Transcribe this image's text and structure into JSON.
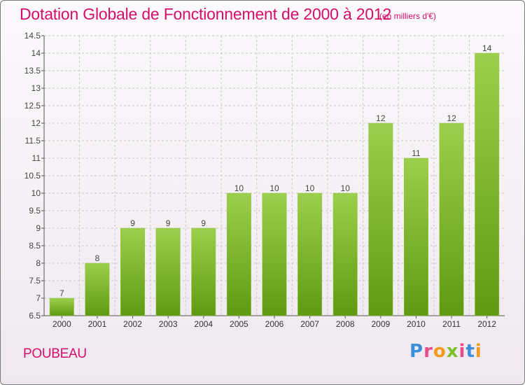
{
  "title": "Dotation Globale de Fonctionnement de 2000 à 2012",
  "subtitle": "(en milliers d'€)",
  "commune": "POUBEAU",
  "logo": {
    "text": "Proxiti",
    "letters": [
      {
        "ch": "P",
        "color": "#3a8fd8"
      },
      {
        "ch": "r",
        "color": "#e84b8a"
      },
      {
        "ch": "o",
        "color": "#f39a1e"
      },
      {
        "ch": "x",
        "color": "#7bbf2a"
      },
      {
        "ch": "i",
        "color": "#e84b8a"
      },
      {
        "ch": "t",
        "color": "#3a8fd8"
      },
      {
        "ch": "i",
        "color": "#f39a1e"
      }
    ]
  },
  "colors": {
    "accent": "#d40e6a",
    "bar_top": "#9ccf4c",
    "bar_bottom": "#5f9a12",
    "grid": "#c8c8c8"
  },
  "chart_data": {
    "type": "bar",
    "title": "Dotation Globale de Fonctionnement de 2000 à 2012",
    "subtitle": "(en milliers d'€)",
    "categories": [
      "2000",
      "2001",
      "2002",
      "2003",
      "2004",
      "2005",
      "2006",
      "2007",
      "2008",
      "2009",
      "2010",
      "2011",
      "2012"
    ],
    "values": [
      7,
      8,
      9,
      9,
      9,
      10,
      10,
      10,
      10,
      12,
      11,
      12,
      14
    ],
    "ylim": [
      6.5,
      14.5
    ],
    "yticks": [
      6.5,
      7,
      7.5,
      8,
      8.5,
      9,
      9.5,
      10,
      10.5,
      11,
      11.5,
      12,
      12.5,
      13,
      13.5,
      14,
      14.5
    ],
    "grid": true,
    "legend": "none"
  }
}
